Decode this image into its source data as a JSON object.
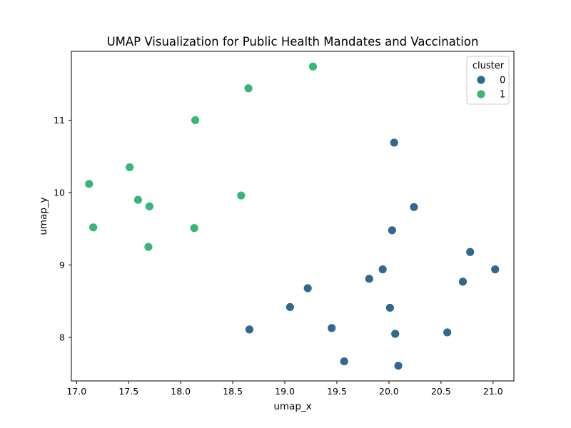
{
  "chart_data": {
    "type": "scatter",
    "title": "UMAP Visualization for Public Health Mandates and Vaccination",
    "xlabel": "umap_x",
    "ylabel": "umap_y",
    "xlim": [
      16.95,
      21.2
    ],
    "ylim": [
      7.4,
      11.95
    ],
    "x_ticks": [
      "17.0",
      "17.5",
      "18.0",
      "18.5",
      "19.0",
      "19.5",
      "20.0",
      "20.5",
      "21.0"
    ],
    "y_ticks": [
      "8",
      "9",
      "10",
      "11"
    ],
    "grid": false,
    "legend": {
      "title": "cluster",
      "position": "top-right"
    },
    "series": [
      {
        "name": "0",
        "color": "#30698e",
        "points": [
          [
            20.05,
            10.69
          ],
          [
            20.24,
            9.8
          ],
          [
            20.03,
            9.48
          ],
          [
            20.78,
            9.18
          ],
          [
            21.02,
            8.94
          ],
          [
            19.94,
            8.94
          ],
          [
            19.81,
            8.81
          ],
          [
            20.71,
            8.77
          ],
          [
            19.22,
            8.68
          ],
          [
            19.05,
            8.42
          ],
          [
            20.01,
            8.41
          ],
          [
            18.66,
            8.11
          ],
          [
            19.45,
            8.13
          ],
          [
            20.06,
            8.05
          ],
          [
            20.56,
            8.07
          ],
          [
            19.57,
            7.67
          ],
          [
            20.09,
            7.61
          ]
        ]
      },
      {
        "name": "1",
        "color": "#35b779",
        "points": [
          [
            19.27,
            11.74
          ],
          [
            18.65,
            11.44
          ],
          [
            18.14,
            11.0
          ],
          [
            17.51,
            10.35
          ],
          [
            17.12,
            10.12
          ],
          [
            18.58,
            9.96
          ],
          [
            17.59,
            9.9
          ],
          [
            17.7,
            9.81
          ],
          [
            17.16,
            9.52
          ],
          [
            18.13,
            9.51
          ],
          [
            17.69,
            9.25
          ]
        ]
      }
    ]
  }
}
